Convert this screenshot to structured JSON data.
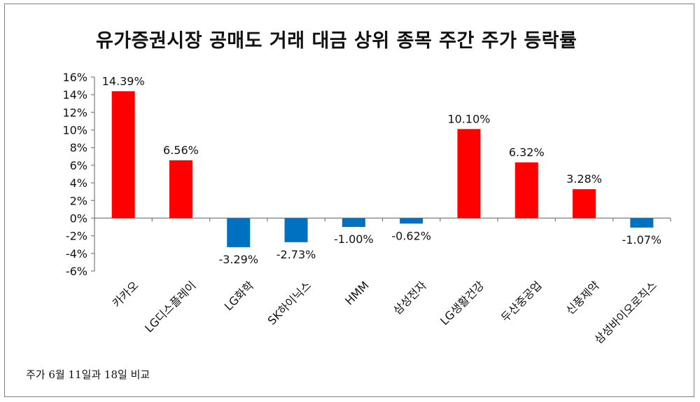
{
  "title": "유가증권시장 공매도 거래 대금 상위 종목 주간 주가 등락률",
  "footnote": "주가 6월 11일과 18일 비교",
  "chart_data": {
    "type": "bar",
    "title": "유가증권시장 공매도 거래 대금 상위 종목 주간 주가 등락률",
    "xlabel": "",
    "ylabel": "",
    "categories": [
      "카카오",
      "LG디스플레이",
      "LG화학",
      "SK하이닉스",
      "HMM",
      "삼성전자",
      "LG생활건강",
      "두산중공업",
      "신풍제약",
      "삼성바이오로직스"
    ],
    "values": [
      14.39,
      6.56,
      -3.29,
      -2.73,
      -1.0,
      -0.62,
      10.1,
      6.32,
      3.28,
      -1.07
    ],
    "data_labels": [
      "14.39%",
      "6.56%",
      "-3.29%",
      "-2.73%",
      "-1.00%",
      "-0.62%",
      "10.10%",
      "6.32%",
      "3.28%",
      "-1.07%"
    ],
    "ylim": [
      -6,
      16
    ],
    "yticks": [
      16,
      14,
      12,
      10,
      8,
      6,
      4,
      2,
      0,
      -2,
      -4,
      -6
    ],
    "ytick_labels": [
      "16%",
      "14%",
      "12%",
      "10%",
      "8%",
      "6%",
      "4%",
      "2%",
      "0%",
      "-2%",
      "-4%",
      "-6%"
    ],
    "grid": false,
    "legend": "none",
    "colors": {
      "positive": "#ff0000",
      "negative": "#0070c0",
      "axis": "#868686"
    }
  }
}
